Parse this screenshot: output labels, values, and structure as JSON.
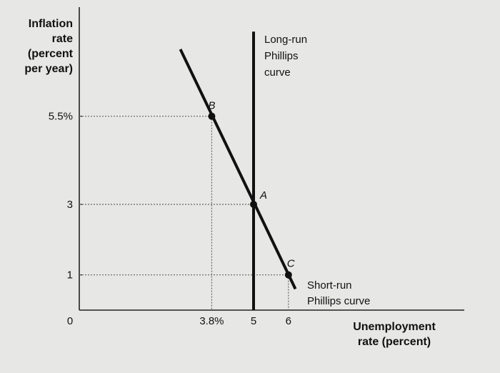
{
  "chart_data": {
    "type": "line",
    "xlabel": [
      "Unemployment",
      "rate (percent)"
    ],
    "ylabel": [
      "Inflation",
      "rate",
      "(percent",
      "per year)"
    ],
    "x_ticks": [
      {
        "value": 0,
        "label": "0"
      },
      {
        "value": 3.8,
        "label": "3.8%"
      },
      {
        "value": 5,
        "label": "5"
      },
      {
        "value": 6,
        "label": "6"
      }
    ],
    "y_ticks": [
      {
        "value": 1,
        "label": "1"
      },
      {
        "value": 3,
        "label": "3"
      },
      {
        "value": 5.5,
        "label": "5.5%"
      }
    ],
    "series": [
      {
        "name": "Short-run Phillips curve",
        "label_lines": [
          "Short-run",
          "Phillips curve"
        ],
        "x": [
          2.9,
          6.2
        ],
        "y": [
          7.4,
          0.6
        ]
      },
      {
        "name": "Long-run Phillips curve",
        "label_lines": [
          "Long-run",
          "Phillips",
          "curve"
        ],
        "x": [
          5,
          5
        ],
        "y": [
          7.9,
          0
        ]
      }
    ],
    "points": [
      {
        "label": "A",
        "x": 5,
        "y": 3
      },
      {
        "label": "B",
        "x": 3.8,
        "y": 5.5
      },
      {
        "label": "C",
        "x": 6,
        "y": 1
      }
    ],
    "grid": false
  }
}
